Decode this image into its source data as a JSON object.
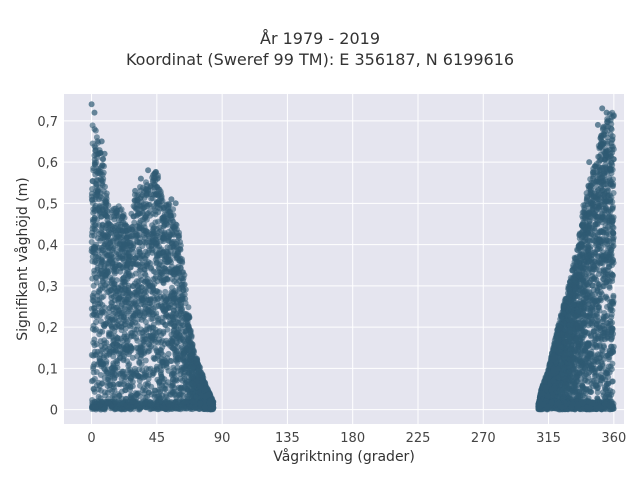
{
  "chart_data": {
    "type": "scatter",
    "title": "År 1979 - 2019",
    "subtitle": "Koordinat (Sweref 99 TM): E 356187, N 6199616",
    "xlabel": "Vågriktning (grader)",
    "ylabel": "Signifikant våghöjd (m)",
    "xlim": [
      -19,
      367
    ],
    "ylim": [
      -0.035,
      0.765
    ],
    "x_ticks": [
      0,
      45,
      90,
      135,
      180,
      225,
      270,
      315,
      360
    ],
    "x_tick_labels": [
      "0",
      "45",
      "90",
      "135",
      "180",
      "225",
      "270",
      "315",
      "360"
    ],
    "y_ticks": [
      0,
      0.1,
      0.2,
      0.3,
      0.4,
      0.5,
      0.6,
      0.7
    ],
    "y_tick_labels": [
      "0",
      "0,1",
      "0,2",
      "0,3",
      "0,4",
      "0,5",
      "0,6",
      "0,7"
    ],
    "grid": true,
    "series": [
      {
        "color": "#2e5a73",
        "envelope": {
          "x": [
            0,
            2,
            4,
            8,
            12,
            20,
            25,
            30,
            40,
            45,
            50,
            55,
            60,
            65,
            70,
            75,
            80,
            84
          ],
          "y_max": [
            0.74,
            0.69,
            0.66,
            0.62,
            0.48,
            0.5,
            0.44,
            0.53,
            0.56,
            0.58,
            0.5,
            0.5,
            0.44,
            0.3,
            0.15,
            0.1,
            0.05,
            0.02
          ]
        },
        "outliers": [
          {
            "x": 0,
            "y": 0.74
          },
          {
            "x": 2,
            "y": 0.72
          },
          {
            "x": 7,
            "y": 0.65
          },
          {
            "x": 9,
            "y": 0.62
          },
          {
            "x": 30,
            "y": 0.53
          },
          {
            "x": 34,
            "y": 0.56
          },
          {
            "x": 39,
            "y": 0.58
          },
          {
            "x": 45,
            "y": 0.54
          },
          {
            "x": 55,
            "y": 0.51
          },
          {
            "x": 58,
            "y": 0.5
          }
        ]
      },
      {
        "color": "#2e5a73",
        "envelope": {
          "x": [
            308,
            310,
            315,
            320,
            325,
            330,
            335,
            340,
            345,
            348,
            352,
            356,
            360
          ],
          "y_max": [
            0.01,
            0.05,
            0.1,
            0.18,
            0.25,
            0.32,
            0.4,
            0.52,
            0.58,
            0.62,
            0.68,
            0.72,
            0.72
          ]
        },
        "outliers": [
          {
            "x": 352,
            "y": 0.73
          },
          {
            "x": 355,
            "y": 0.72
          },
          {
            "x": 349,
            "y": 0.69
          },
          {
            "x": 343,
            "y": 0.6
          }
        ]
      }
    ]
  }
}
